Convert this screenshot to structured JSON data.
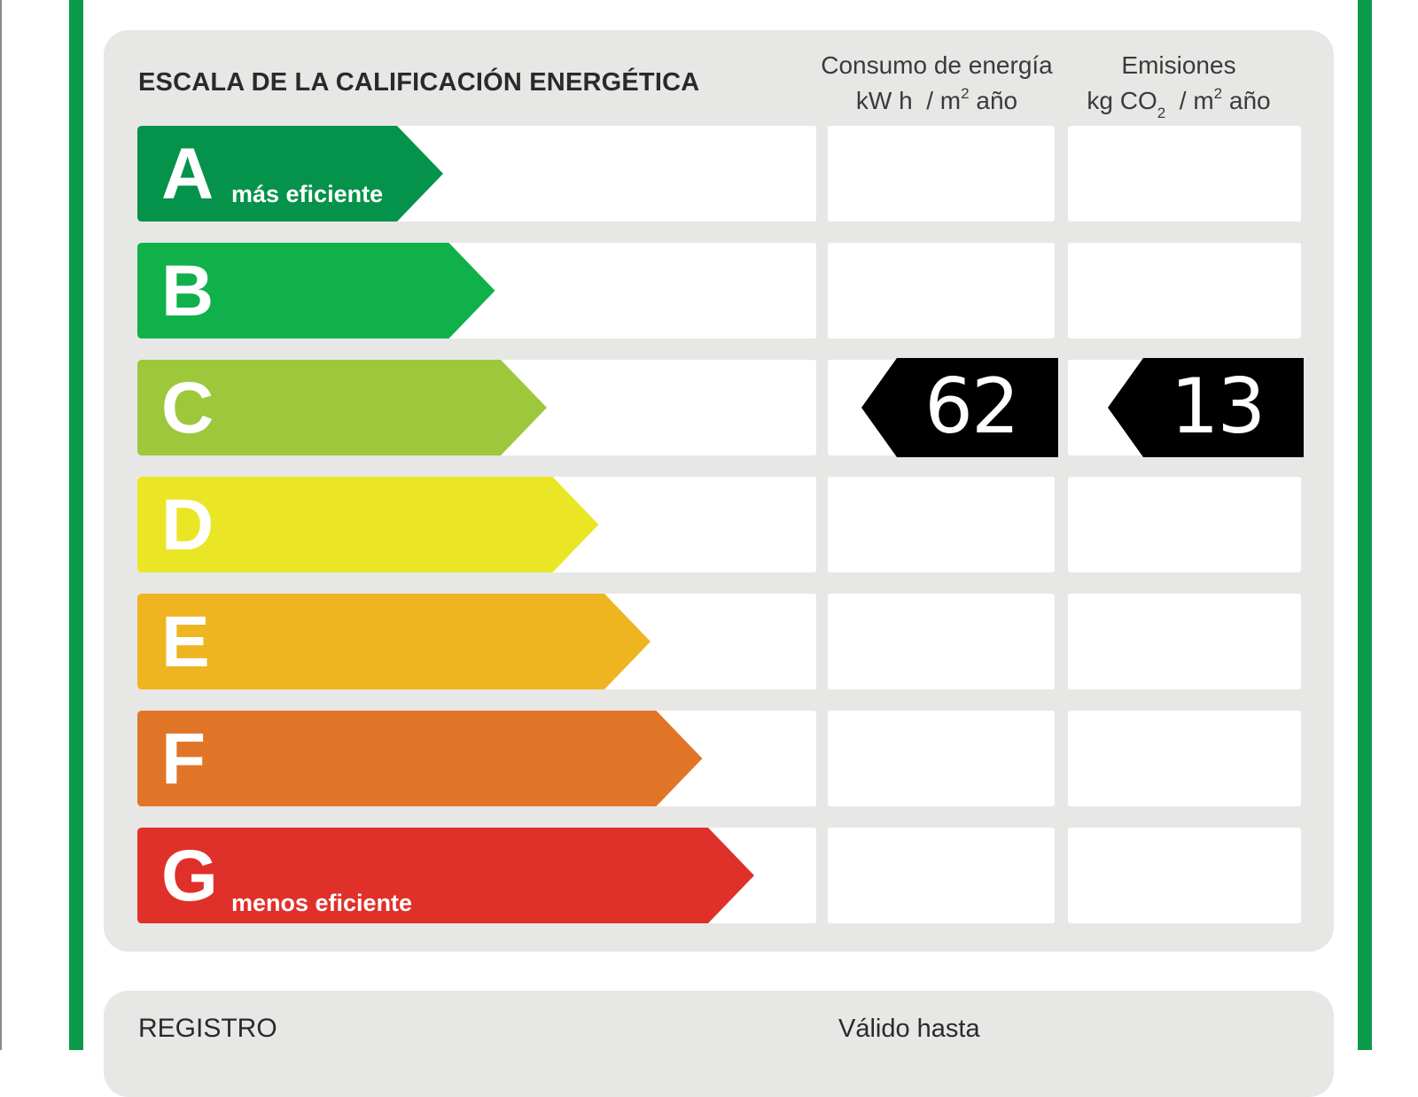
{
  "header": {
    "title": "ESCALA DE LA CALIFICACIÓN ENERGÉTICA",
    "energy_col": {
      "line1": "Consumo de energía",
      "unit": "kW h",
      "per": "/ m",
      "sup": "2",
      "year": " año"
    },
    "emissions_col": {
      "line1": "Emisiones",
      "unit": "kg CO",
      "sub": "2",
      "per": "/ m",
      "sup": "2",
      "year": " año"
    }
  },
  "grades": [
    {
      "letter": "A",
      "note": "más eficiente",
      "color": "#05924a"
    },
    {
      "letter": "B",
      "note": "",
      "color": "#10b04b"
    },
    {
      "letter": "C",
      "note": "",
      "color": "#9dc83c"
    },
    {
      "letter": "D",
      "note": "",
      "color": "#ebe625"
    },
    {
      "letter": "E",
      "note": "",
      "color": "#eeb520"
    },
    {
      "letter": "F",
      "note": "",
      "color": "#e07528"
    },
    {
      "letter": "G",
      "note": "menos eficiente",
      "color": "#e0302a"
    }
  ],
  "rating": {
    "grade": "C",
    "energy_consumption": "62",
    "emissions": "13",
    "tag_color": "#000000"
  },
  "footer": {
    "registro_label": "REGISTRO",
    "valido_label": "Válido hasta"
  }
}
